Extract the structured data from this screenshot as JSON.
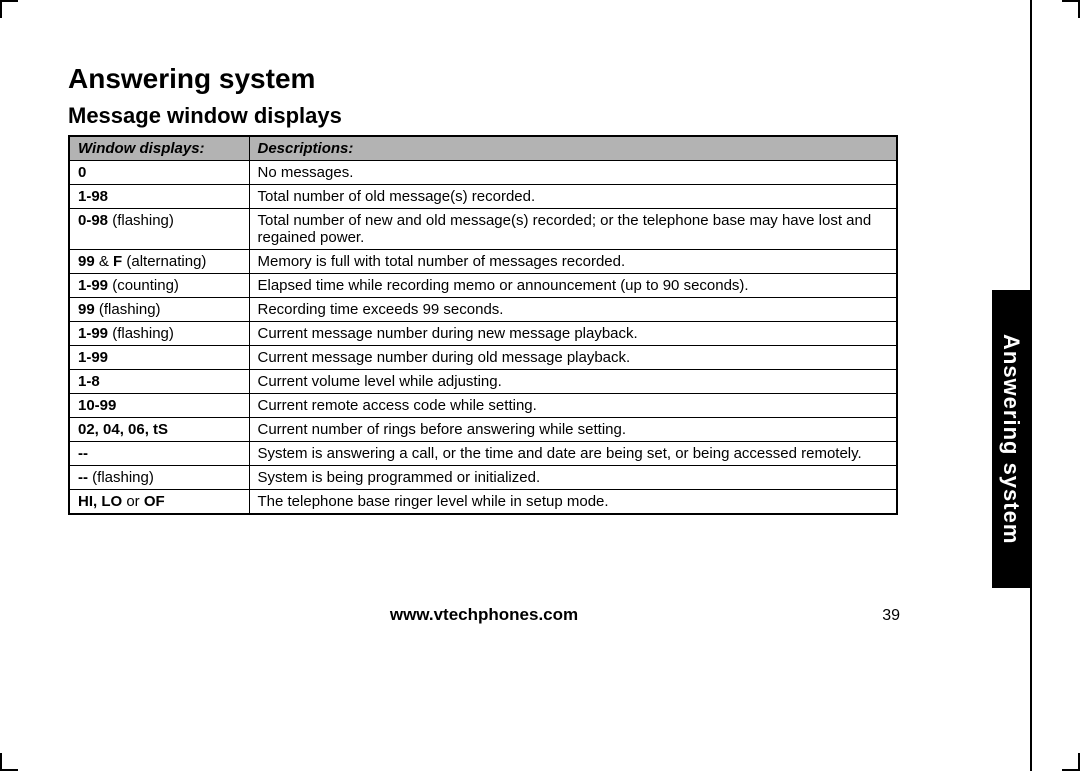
{
  "section_title": "Answering system",
  "sub_title": "Message window displays",
  "side_tab": "Answering system",
  "footer_url": "www.vtechphones.com",
  "page_number": "39",
  "table": {
    "header": {
      "col1": "Window displays:",
      "col2": "Descriptions:"
    },
    "rows": [
      {
        "code_bold": "0",
        "code_rest": "",
        "desc": "No messages."
      },
      {
        "code_bold": "1-98",
        "code_rest": "",
        "desc": "Total number of old message(s) recorded."
      },
      {
        "code_bold": "0-98",
        "code_rest": " (flashing)",
        "desc": "Total number of new and old message(s) recorded; or the telephone base may have lost and regained power."
      },
      {
        "code_bold": "99",
        "code_rest": " & ",
        "code_bold2": "F",
        "code_rest2": " (alternating)",
        "desc": "Memory is full with total number of messages recorded."
      },
      {
        "code_bold": "1-99",
        "code_rest": " (counting)",
        "desc": "Elapsed time while recording memo or announcement (up to 90 seconds).",
        "justify": true
      },
      {
        "code_bold": "99",
        "code_rest": " (flashing)",
        "desc": "Recording time exceeds 99 seconds."
      },
      {
        "code_bold": "1-99",
        "code_rest": " (flashing)",
        "desc": "Current message number during new message playback."
      },
      {
        "code_bold": "1-99",
        "code_rest": "",
        "desc": "Current message number during old message playback."
      },
      {
        "code_bold": "1-8",
        "code_rest": "",
        "desc": "Current volume level while adjusting."
      },
      {
        "code_bold": "10-99",
        "code_rest": "",
        "desc": "Current remote access code while setting."
      },
      {
        "code_bold": "02, 04, 06, tS",
        "code_rest": "",
        "desc": "Current number of rings before answering while setting."
      },
      {
        "code_bold": "--",
        "code_rest": "",
        "desc": "System is answering a call, or the time and date are being set, or being accessed remotely."
      },
      {
        "code_bold": "--",
        "code_rest": " (flashing)",
        "desc": "System is being programmed or initialized."
      },
      {
        "code_bold": "HI, LO",
        "code_rest": " or ",
        "code_bold2": "OF",
        "code_rest2": "",
        "desc": "The telephone base ringer level while in setup mode."
      }
    ]
  }
}
